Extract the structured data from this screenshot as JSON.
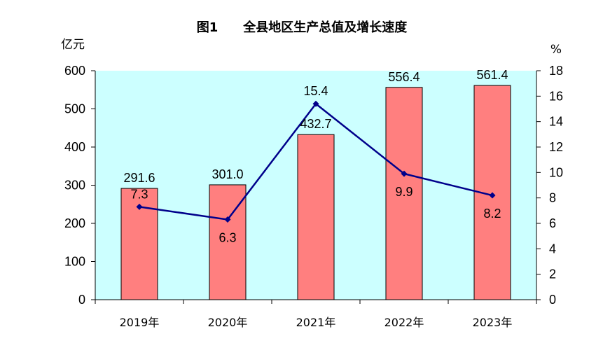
{
  "chart_data": {
    "type": "bar",
    "title": "图1　　全县地区生产总值及增长速度",
    "ylabel": "亿元",
    "y2label": "%",
    "categories": [
      "2019年",
      "2020年",
      "2021年",
      "2022年",
      "2023年"
    ],
    "ylim": [
      0,
      600
    ],
    "y2lim": [
      0,
      18
    ],
    "yticks": [
      "0",
      "100",
      "200",
      "300",
      "400",
      "500",
      "600"
    ],
    "y2ticks": [
      "0",
      "2",
      "4",
      "6",
      "8",
      "10",
      "12",
      "14",
      "16",
      "18"
    ],
    "series": [
      {
        "type": "bar",
        "axis": "left",
        "values": [
          291.6,
          301.0,
          432.7,
          556.4,
          561.4
        ],
        "labels": [
          "291.6",
          "301.0",
          "432.7",
          "556.4",
          "561.4"
        ],
        "color": "#ff7f7f"
      },
      {
        "type": "line",
        "axis": "right",
        "values": [
          7.3,
          6.3,
          15.4,
          9.9,
          8.2
        ],
        "labels": [
          "7.3",
          "6.3",
          "15.4",
          "9.9",
          "8.2"
        ],
        "color": "#00008b"
      }
    ],
    "plot_background": "#ccffff",
    "grid": false,
    "legend": "none"
  }
}
